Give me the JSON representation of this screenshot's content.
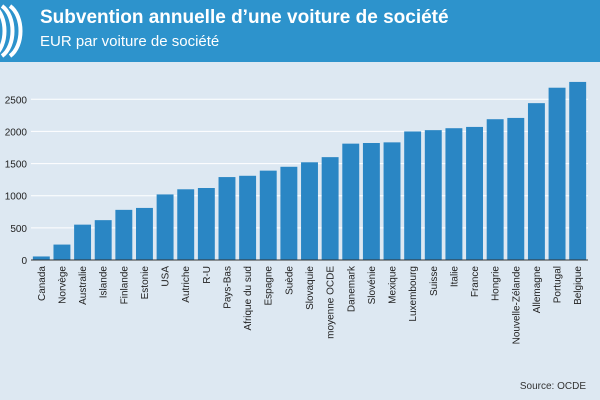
{
  "header": {
    "title": "Subvention annuelle d’une voiture de société",
    "subtitle": "EUR par voiture de société",
    "brand_color": "#2d93cc"
  },
  "source": "Source: OCDE",
  "chart_data": {
    "type": "bar",
    "title": "Subvention annuelle d’une voiture de société",
    "subtitle": "EUR par voiture de société",
    "xlabel": "",
    "ylabel": "",
    "ylim": [
      0,
      2800
    ],
    "yticks": [
      0,
      500,
      1000,
      1500,
      2000,
      2500
    ],
    "grid": true,
    "bar_color": "#2a86c4",
    "categories": [
      "Canada",
      "Norvège",
      "Australie",
      "Islande",
      "Finlande",
      "Estonie",
      "USA",
      "Autriche",
      "R-U",
      "Pays-Bas",
      "Afrique du sud",
      "Espagne",
      "Suède",
      "Slovaquie",
      "moyenne OCDE",
      "Danemark",
      "Slovénie",
      "Mexique",
      "Luxembourg",
      "Suisse",
      "Italie",
      "France",
      "Hongrie",
      "Nouvelle-Zélande",
      "Allemagne",
      "Portugal",
      "Belgique"
    ],
    "values": [
      55,
      240,
      550,
      620,
      780,
      810,
      1020,
      1100,
      1120,
      1290,
      1310,
      1390,
      1450,
      1520,
      1600,
      1810,
      1820,
      1830,
      2000,
      2020,
      2050,
      2070,
      2190,
      2210,
      2440,
      2680,
      2770
    ]
  }
}
